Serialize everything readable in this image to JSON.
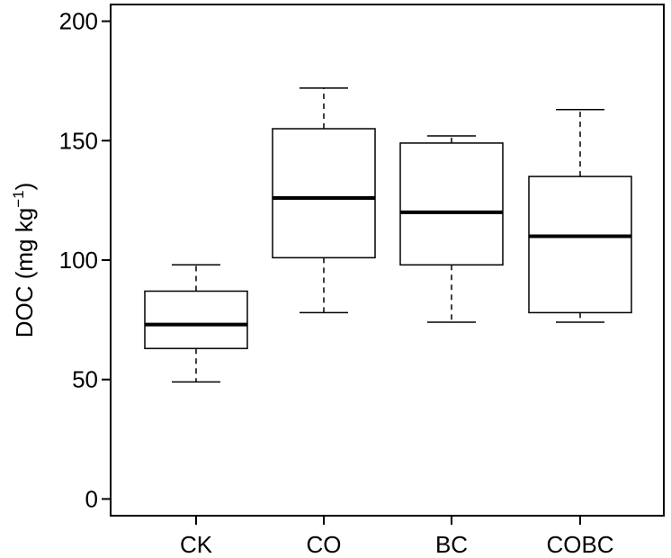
{
  "chart_data": {
    "type": "box",
    "categories": [
      "CK",
      "CO",
      "BC",
      "COBC"
    ],
    "boxes": [
      {
        "category": "CK",
        "whisker_low": 49,
        "q1": 63,
        "median": 73,
        "q3": 87,
        "whisker_high": 98
      },
      {
        "category": "CO",
        "whisker_low": 78,
        "q1": 101,
        "median": 126,
        "q3": 155,
        "whisker_high": 172
      },
      {
        "category": "BC",
        "whisker_low": 74,
        "q1": 98,
        "median": 120,
        "q3": 149,
        "whisker_high": 152
      },
      {
        "category": "COBC",
        "whisker_low": 74,
        "q1": 78,
        "median": 110,
        "q3": 135,
        "whisker_high": 163
      }
    ],
    "ylabel_main": "DOC (mg kg",
    "ylabel_sup": "−1",
    "ylabel_close": ")",
    "ylim": [
      -7,
      207
    ],
    "yticks": [
      0,
      50,
      100,
      150,
      200
    ],
    "grid": false,
    "legend": "none"
  }
}
